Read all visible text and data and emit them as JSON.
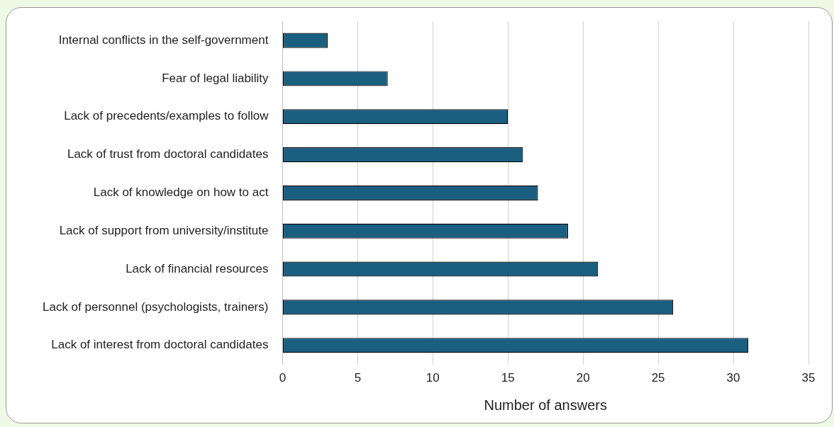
{
  "chart_data": {
    "type": "bar",
    "orientation": "horizontal",
    "xlabel": "Number of answers",
    "categories": [
      "Internal conflicts in the self-government",
      "Fear of legal liability",
      "Lack of precedents/examples to follow",
      "Lack of trust from doctoral candidates",
      "Lack of knowledge on how to act",
      "Lack of support from university/institute",
      "Lack of financial resources",
      "Lack of personnel (psychologists, trainers)",
      "Lack of interest from doctoral candidates"
    ],
    "values": [
      3,
      7,
      15,
      16,
      17,
      19,
      21,
      26,
      31
    ],
    "color": "#1a5e80",
    "xlim": [
      0,
      35
    ],
    "xticks": [
      0,
      5,
      10,
      15,
      20,
      25,
      30,
      35
    ],
    "grid": "x",
    "legend": false
  }
}
